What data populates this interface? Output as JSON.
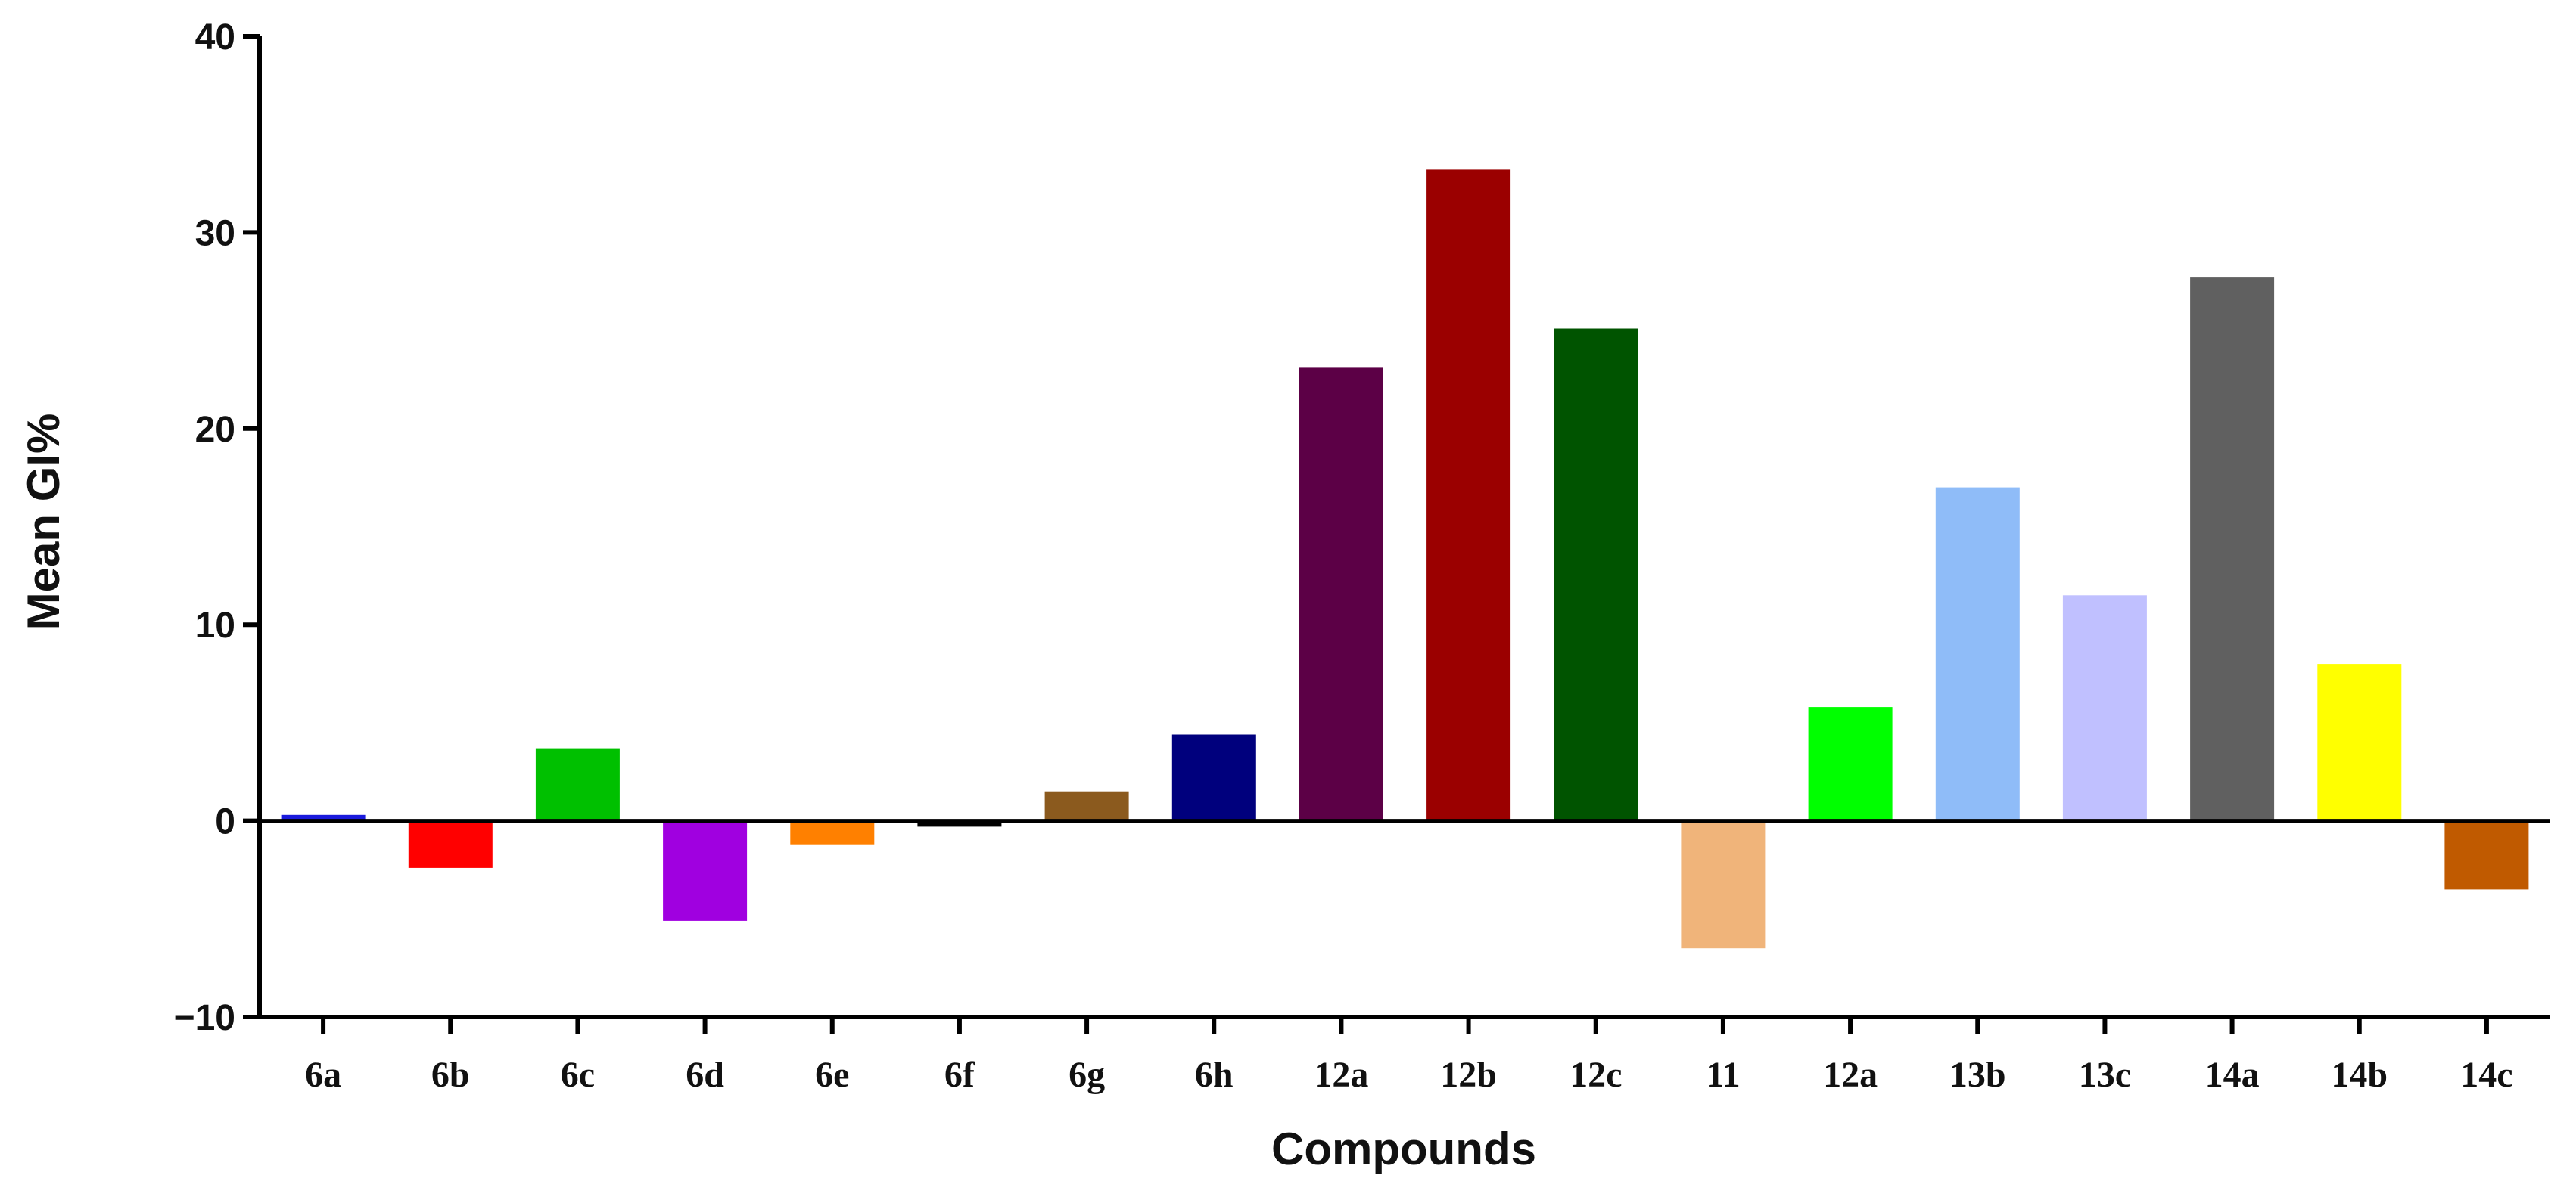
{
  "chart_data": {
    "type": "bar",
    "title": "",
    "xlabel": "Compounds",
    "ylabel": "Mean GI%",
    "ylim": [
      -10,
      40
    ],
    "yticks": [
      "40",
      "30",
      "20",
      "10",
      "0",
      "−10"
    ],
    "ytick_values": [
      40,
      30,
      20,
      10,
      0,
      -10
    ],
    "grid": false,
    "legend": "none",
    "categories": [
      "6a",
      "6b",
      "6c",
      "6d",
      "6e",
      "6f",
      "6g",
      "6h",
      "12a",
      "12b",
      "12c",
      "11",
      "12a",
      "13b",
      "13c",
      "14a",
      "14b",
      "14c"
    ],
    "values": [
      0.3,
      -2.4,
      3.7,
      -5.1,
      -1.2,
      -0.3,
      1.5,
      4.4,
      23.1,
      33.2,
      25.1,
      -6.5,
      5.8,
      17.0,
      11.5,
      27.7,
      8.0,
      -3.5
    ],
    "colors": [
      "#1a1adc",
      "#ff0000",
      "#00c000",
      "#a000e0",
      "#ff8000",
      "#000000",
      "#8b5a1e",
      "#00007d",
      "#5c0046",
      "#9b0000",
      "#005400",
      "#f0b47a",
      "#00ff00",
      "#8fbcf8",
      "#c0c0ff",
      "#606060",
      "#ffff00",
      "#c05a00"
    ],
    "series": [
      {
        "name": "",
        "values": [
          0.3,
          -2.4,
          3.7,
          -5.1,
          -1.2,
          -0.3,
          1.5,
          4.4,
          23.1,
          33.2,
          25.1,
          -6.5,
          5.8,
          17.0,
          11.5,
          27.7,
          8.0,
          -3.5
        ]
      }
    ]
  }
}
